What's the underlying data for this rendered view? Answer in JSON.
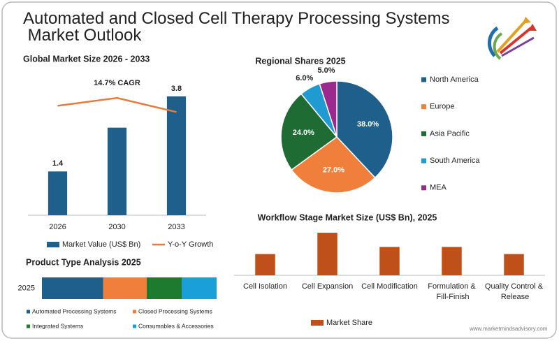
{
  "title": "Automated and Closed Cell Therapy Processing Systems Market Outlook",
  "footer": "www.marketmindsadvisory.com",
  "chart_data": [
    {
      "type": "bar",
      "title": "Global Market Size 2026 - 2033",
      "categories": [
        "2026",
        "2030",
        "2033"
      ],
      "series": [
        {
          "name": "Market Value (US$ Bn)",
          "type": "bar",
          "color": "#1f5f8b",
          "values": [
            1.4,
            2.8,
            3.8
          ],
          "value_labels": [
            "1.4",
            null,
            "3.8"
          ]
        },
        {
          "name": "Y-o-Y Growth",
          "type": "line",
          "color": "#e87a3c",
          "values": [
            3.5,
            3.75,
            3.3
          ]
        }
      ],
      "annotation": "14.7% CAGR",
      "ylim": [
        0,
        4.2
      ]
    },
    {
      "type": "pie",
      "title": "Regional Shares 2025",
      "categories": [
        "North America",
        "Europe",
        "Asia Pacific",
        "South America",
        "MEA"
      ],
      "values": [
        38,
        27,
        24,
        6,
        5
      ],
      "value_labels": [
        "38.0%",
        "27.0%",
        "24.0%",
        "6.0%",
        "5.0%"
      ],
      "colors": [
        "#1f5f8b",
        "#f07f3c",
        "#1e6b33",
        "#1f9bd1",
        "#9c2a8e"
      ]
    },
    {
      "type": "stacked-bar",
      "orientation": "horizontal",
      "title": "Product Type Analysis 2025",
      "categories": [
        "2025"
      ],
      "series": [
        {
          "name": "Automated Processing Systems",
          "color": "#1f5f8b",
          "values": [
            35
          ]
        },
        {
          "name": "Closed Processing Systems",
          "color": "#f07f3c",
          "values": [
            25
          ]
        },
        {
          "name": "Integrated Systems",
          "color": "#1e7a2e",
          "values": [
            20
          ]
        },
        {
          "name": "Consumables & Accessories",
          "color": "#1a9fd8",
          "values": [
            20
          ]
        }
      ],
      "xlim": [
        0,
        100
      ]
    },
    {
      "type": "bar",
      "title": "Workflow Stage Market Size (US$ Bn), 2025",
      "categories": [
        "Cell Isolation",
        "Cell Expansion",
        "Cell Modification",
        "Formulation & Fill-Finish",
        "Quality Control & Release"
      ],
      "series": [
        {
          "name": "Market Share",
          "type": "bar",
          "color": "#c0501a",
          "values": [
            0.15,
            0.3,
            0.2,
            0.2,
            0.15
          ]
        }
      ],
      "ylim": [
        0,
        0.32
      ]
    }
  ]
}
